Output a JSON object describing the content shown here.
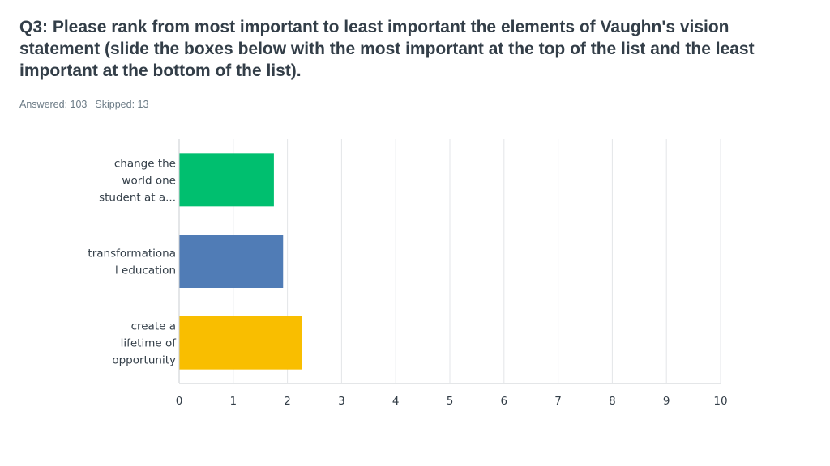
{
  "question": {
    "title": "Q3: Please rank from most important to least important the elements of Vaughn's vision statement (slide the boxes below with the most important at the top of the list and the least important at the bottom of the list).",
    "answered_label": "Answered: 103",
    "skipped_label": "Skipped: 13"
  },
  "chart_data": {
    "type": "bar",
    "orientation": "horizontal",
    "categories": [
      [
        "change the",
        "world one",
        "student at a..."
      ],
      [
        "transformationa",
        "l education"
      ],
      [
        "create a",
        "lifetime of",
        "opportunity"
      ]
    ],
    "values": [
      1.75,
      1.92,
      2.27
    ],
    "colors": [
      "#00bf6f",
      "#507cb6",
      "#f9be00"
    ],
    "xlim": [
      0,
      10
    ],
    "xticks": [
      0,
      1,
      2,
      3,
      4,
      5,
      6,
      7,
      8,
      9,
      10
    ],
    "grid": true,
    "title": "",
    "xlabel": "",
    "ylabel": ""
  }
}
